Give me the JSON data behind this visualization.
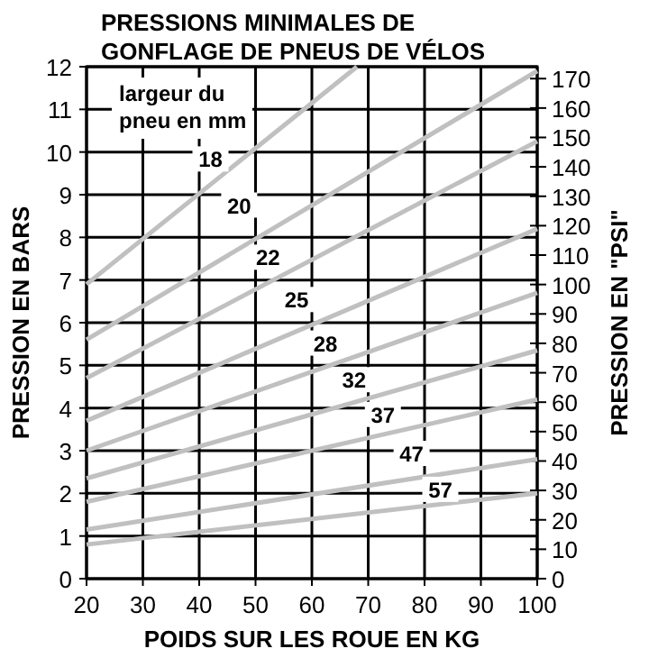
{
  "chart_data": {
    "type": "line",
    "title": "PRESSIONS MINIMALES DE\nGONFLAGE DE PNEUS DE VÉLOS",
    "xlabel": "POIDS SUR LES ROUE EN KG",
    "ylabel": "PRESSION EN BARS",
    "y2label": "PRESSION EN \"PSI\"",
    "legend_title": "largeur du\npneu en mm",
    "grid": true,
    "marker": "none",
    "line_style": "solid",
    "xlim": [
      20,
      100
    ],
    "xticks": [
      20,
      30,
      40,
      50,
      60,
      70,
      80,
      90,
      100
    ],
    "ylim": [
      0,
      12
    ],
    "yticks": [
      0,
      1,
      2,
      3,
      4,
      5,
      6,
      7,
      8,
      9,
      10,
      11,
      12
    ],
    "y2lim": [
      0,
      174.05
    ],
    "y2ticks": [
      0,
      10,
      20,
      30,
      40,
      50,
      60,
      70,
      80,
      90,
      100,
      110,
      120,
      130,
      140,
      150,
      160,
      170
    ],
    "series": [
      {
        "name": "18",
        "color": "#c0c0c0",
        "x": [
          20,
          68
        ],
        "values": [
          6.9,
          12
        ]
      },
      {
        "name": "20",
        "color": "#c0c0c0",
        "x": [
          20,
          100
        ],
        "values": [
          5.6,
          11.9
        ]
      },
      {
        "name": "22",
        "color": "#c0c0c0",
        "x": [
          20,
          100
        ],
        "values": [
          4.7,
          10.25
        ]
      },
      {
        "name": "25",
        "color": "#c0c0c0",
        "x": [
          20,
          100
        ],
        "values": [
          3.7,
          8.2
        ]
      },
      {
        "name": "28",
        "color": "#c0c0c0",
        "x": [
          20,
          100
        ],
        "values": [
          3.0,
          6.7
        ]
      },
      {
        "name": "32",
        "color": "#c0c0c0",
        "x": [
          20,
          100
        ],
        "values": [
          2.35,
          5.35
        ]
      },
      {
        "name": "37",
        "color": "#c0c0c0",
        "x": [
          20,
          100
        ],
        "values": [
          1.8,
          4.2
        ]
      },
      {
        "name": "47",
        "color": "#c0c0c0",
        "x": [
          20,
          100
        ],
        "values": [
          1.15,
          2.8
        ]
      },
      {
        "name": "57",
        "color": "#c0c0c0",
        "x": [
          20,
          100
        ],
        "values": [
          0.8,
          2.0
        ]
      }
    ]
  }
}
